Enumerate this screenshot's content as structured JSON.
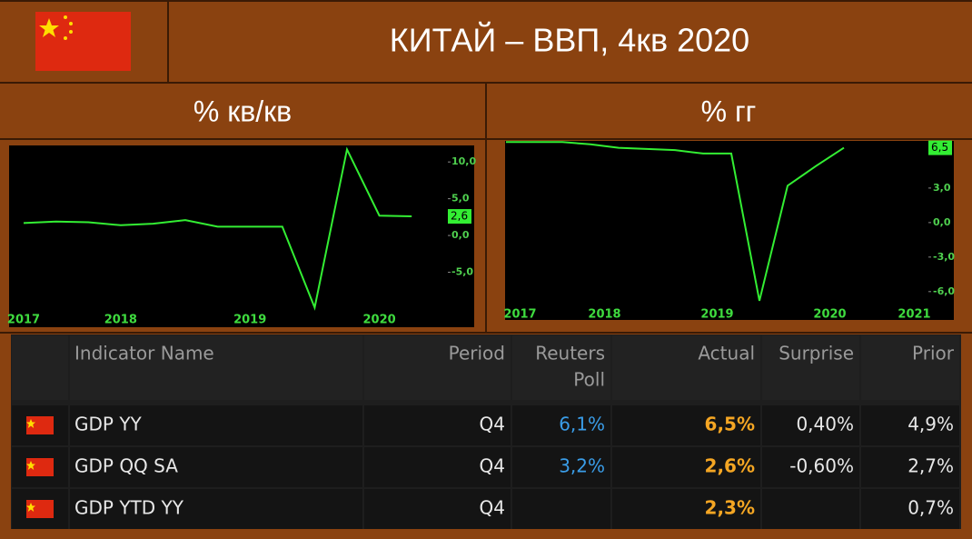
{
  "header": {
    "title": "КИТАЙ – ВВП, 4кв 2020"
  },
  "chart_data": [
    {
      "type": "line",
      "title": "% кв/кв",
      "color": "#33ee33",
      "categories": [
        "2017",
        null,
        null,
        "2018",
        null,
        null,
        null,
        "2019",
        null,
        null,
        null,
        "2020",
        null
      ],
      "values": [
        1.7,
        1.9,
        1.8,
        1.4,
        1.6,
        2.1,
        1.2,
        1.2,
        1.2,
        -9.8,
        11.7,
        2.7,
        2.6
      ],
      "value_labels": [
        null,
        null,
        null,
        null,
        null,
        null,
        null,
        null,
        null,
        null,
        null,
        null,
        "2,6"
      ],
      "ylim": [
        -10,
        12
      ],
      "yticks": [
        {
          "value": -5,
          "label": "-5,0"
        },
        {
          "value": 0,
          "label": "0,0"
        },
        {
          "value": 5,
          "label": "5,0"
        },
        {
          "value": 10,
          "label": "10,0"
        }
      ]
    },
    {
      "type": "line",
      "title": "% гг",
      "color": "#33ee33",
      "categories": [
        null,
        "2017",
        null,
        null,
        "2018",
        null,
        null,
        null,
        "2019",
        null,
        null,
        null,
        "2020",
        null,
        null,
        "2021"
      ],
      "values": [
        7.0,
        7.0,
        7.0,
        6.8,
        6.5,
        6.4,
        6.3,
        6.0,
        6.0,
        -6.8,
        3.2,
        4.9,
        6.5,
        null,
        null,
        null
      ],
      "value_labels": [
        null,
        null,
        null,
        null,
        null,
        null,
        null,
        null,
        null,
        null,
        null,
        null,
        "6,5",
        null,
        null,
        null
      ],
      "ylim": [
        -7.2,
        7.1
      ],
      "yticks": [
        {
          "value": -6,
          "label": "-6,0"
        },
        {
          "value": -3,
          "label": "-3,0"
        },
        {
          "value": 0,
          "label": "0,0"
        },
        {
          "value": 3,
          "label": "3,0"
        }
      ]
    }
  ],
  "table": {
    "header": [
      "Indicator Name",
      "Period",
      [
        "Reuters",
        "Poll"
      ],
      "Actual",
      "Surprise",
      "Prior"
    ],
    "rows": [
      [
        "GDP YY",
        "Q4",
        "6,1%",
        "6,5%",
        "0,40%",
        "4,9%"
      ],
      [
        "GDP QQ SA",
        "Q4",
        "3,2%",
        "2,6%",
        "-0,60%",
        "2,7%"
      ],
      [
        "GDP YTD YY",
        "Q4",
        null,
        "2,3%",
        null,
        "0,7%"
      ]
    ]
  }
}
